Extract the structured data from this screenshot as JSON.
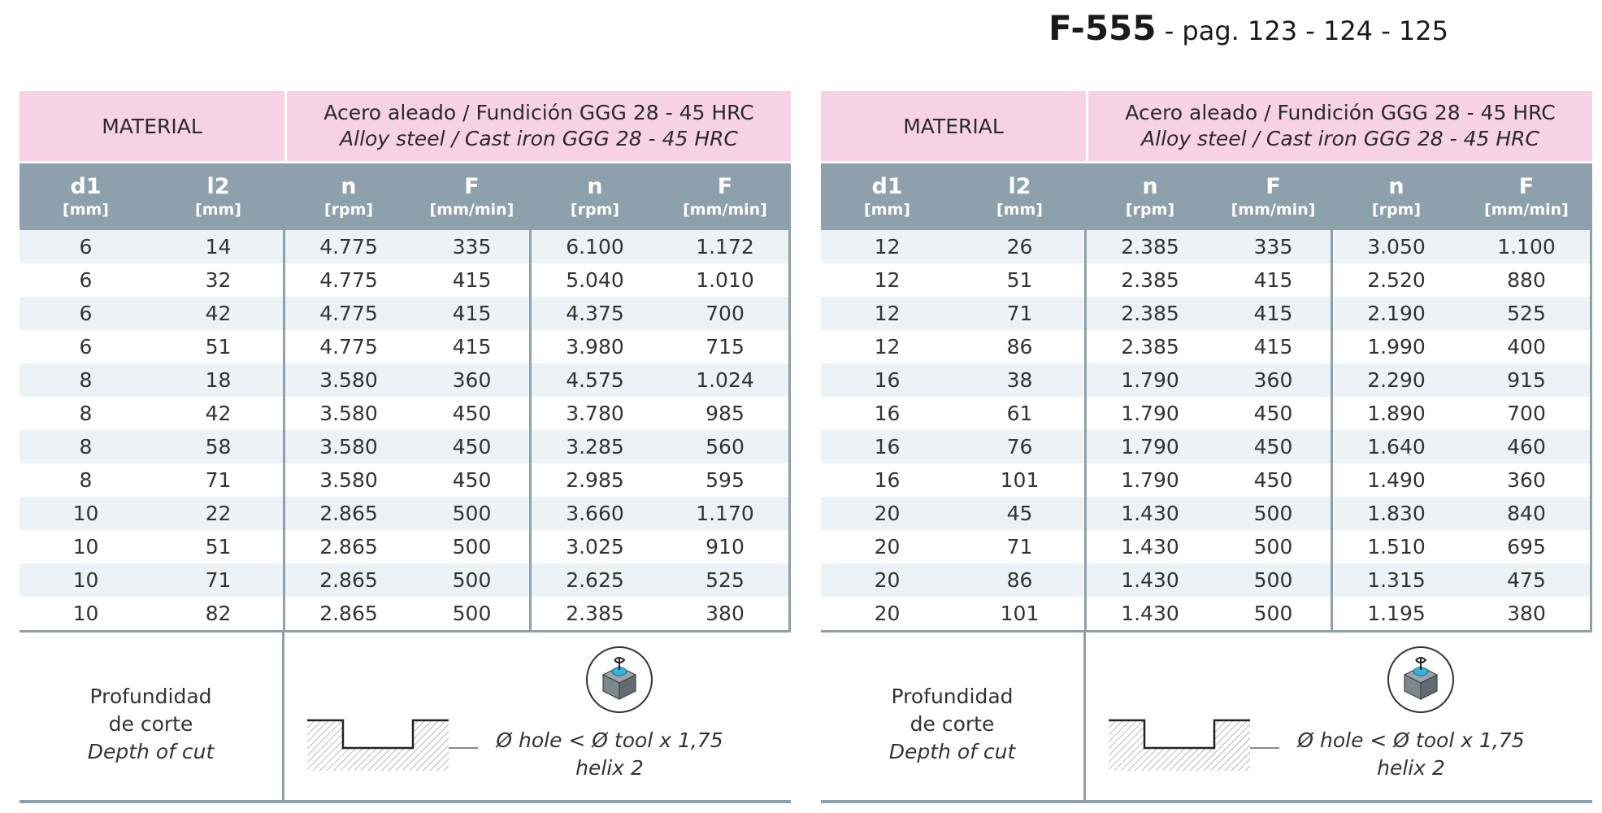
{
  "header": {
    "code": "F-555",
    "pages": " - pag. 123 - 124 - 125"
  },
  "panels": [
    {
      "material_label": "MATERIAL",
      "material_es": "Acero aleado / Fundición GGG 28 - 45 HRC",
      "material_en": "Alloy steel / Cast iron GGG 28 - 45 HRC",
      "columns": [
        {
          "key": "d1",
          "unit": "[mm]"
        },
        {
          "key": "l2",
          "unit": "[mm]"
        },
        {
          "key": "n",
          "unit": "[rpm]"
        },
        {
          "key": "F",
          "unit": "[mm/min]"
        },
        {
          "key": "n",
          "unit": "[rpm]"
        },
        {
          "key": "F",
          "unit": "[mm/min]"
        }
      ],
      "rows": [
        [
          "6",
          "14",
          "4.775",
          "335",
          "6.100",
          "1.172"
        ],
        [
          "6",
          "32",
          "4.775",
          "415",
          "5.040",
          "1.010"
        ],
        [
          "6",
          "42",
          "4.775",
          "415",
          "4.375",
          "700"
        ],
        [
          "6",
          "51",
          "4.775",
          "415",
          "3.980",
          "715"
        ],
        [
          "8",
          "18",
          "3.580",
          "360",
          "4.575",
          "1.024"
        ],
        [
          "8",
          "42",
          "3.580",
          "450",
          "3.780",
          "985"
        ],
        [
          "8",
          "58",
          "3.580",
          "450",
          "3.285",
          "560"
        ],
        [
          "8",
          "71",
          "3.580",
          "450",
          "2.985",
          "595"
        ],
        [
          "10",
          "22",
          "2.865",
          "500",
          "3.660",
          "1.170"
        ],
        [
          "10",
          "51",
          "2.865",
          "500",
          "3.025",
          "910"
        ],
        [
          "10",
          "71",
          "2.865",
          "500",
          "2.625",
          "525"
        ],
        [
          "10",
          "82",
          "2.865",
          "500",
          "2.385",
          "380"
        ]
      ],
      "depth_es_1": "Profundidad",
      "depth_es_2": "de corte",
      "depth_en": "Depth of cut",
      "note_1": "Ø hole < Ø tool x 1,75",
      "note_2": "helix 2"
    },
    {
      "material_label": "MATERIAL",
      "material_es": "Acero aleado / Fundición GGG 28 - 45 HRC",
      "material_en": "Alloy steel / Cast iron GGG 28 - 45 HRC",
      "columns": [
        {
          "key": "d1",
          "unit": "[mm]"
        },
        {
          "key": "l2",
          "unit": "[mm]"
        },
        {
          "key": "n",
          "unit": "[rpm]"
        },
        {
          "key": "F",
          "unit": "[mm/min]"
        },
        {
          "key": "n",
          "unit": "[rpm]"
        },
        {
          "key": "F",
          "unit": "[mm/min]"
        }
      ],
      "rows": [
        [
          "12",
          "26",
          "2.385",
          "335",
          "3.050",
          "1.100"
        ],
        [
          "12",
          "51",
          "2.385",
          "415",
          "2.520",
          "880"
        ],
        [
          "12",
          "71",
          "2.385",
          "415",
          "2.190",
          "525"
        ],
        [
          "12",
          "86",
          "2.385",
          "415",
          "1.990",
          "400"
        ],
        [
          "16",
          "38",
          "1.790",
          "360",
          "2.290",
          "915"
        ],
        [
          "16",
          "61",
          "1.790",
          "450",
          "1.890",
          "700"
        ],
        [
          "16",
          "76",
          "1.790",
          "450",
          "1.640",
          "460"
        ],
        [
          "16",
          "101",
          "1.790",
          "450",
          "1.490",
          "360"
        ],
        [
          "20",
          "45",
          "1.430",
          "500",
          "1.830",
          "840"
        ],
        [
          "20",
          "71",
          "1.430",
          "500",
          "1.510",
          "695"
        ],
        [
          "20",
          "86",
          "1.430",
          "500",
          "1.315",
          "475"
        ],
        [
          "20",
          "101",
          "1.430",
          "500",
          "1.195",
          "380"
        ]
      ],
      "depth_es_1": "Profundidad",
      "depth_es_2": "de corte",
      "depth_en": "Depth of cut",
      "note_1": "Ø hole < Ø tool x 1,75",
      "note_2": "helix 2"
    }
  ],
  "colors": {
    "header_pink": "#f7d2e4",
    "column_header_gray": "#8da0ab",
    "row_stripe": "#ecf2f5"
  },
  "icons": [
    "pocket-profile-icon",
    "cube-toolpath-icon"
  ]
}
